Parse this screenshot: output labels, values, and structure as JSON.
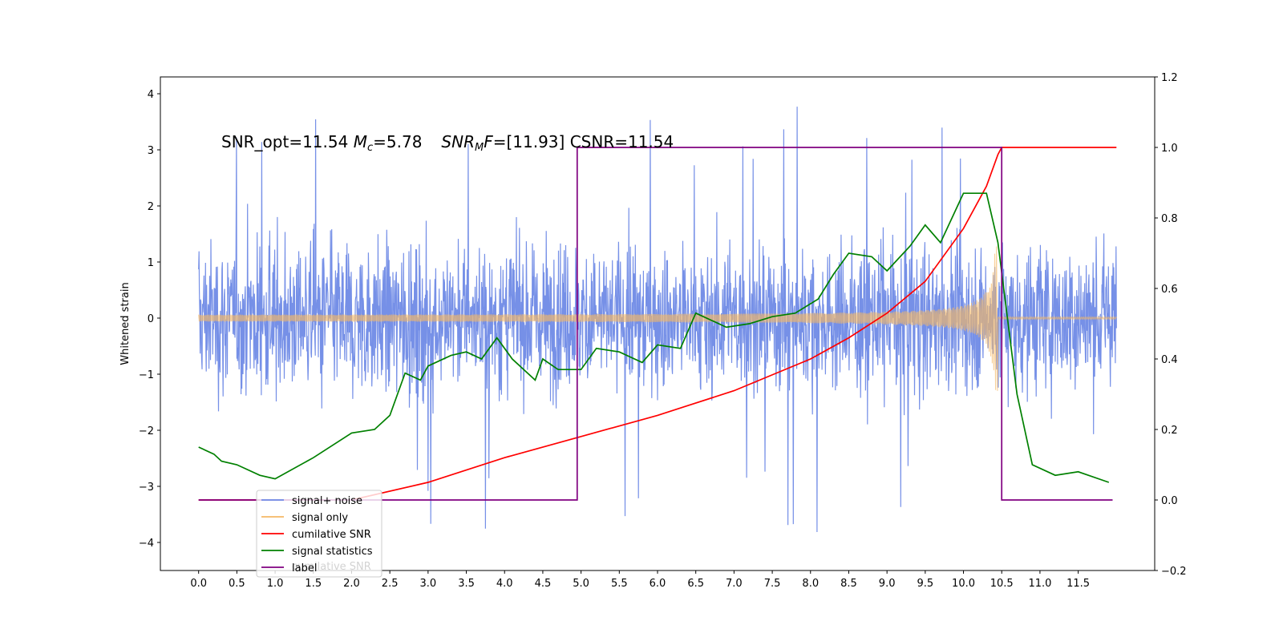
{
  "chart_data": {
    "type": "line",
    "annotation": {
      "prefix": "SNR_opt=11.54 ",
      "mc_symbol": "M",
      "mc_sub": "c",
      "mc_value": "=5.78",
      "snr_symbol": "SNR",
      "snr_sub": "M",
      "snr_f": "F",
      "snr_value": "=[11.93] CSNR=11.54"
    },
    "ylabel_left": "Whitened strain",
    "xlim": [
      -0.5,
      12.5
    ],
    "ylim_left": [
      -4.5,
      4.3
    ],
    "ylim_right": [
      -0.2,
      1.2
    ],
    "x_ticks": [
      "0.0",
      "0.5",
      "1.0",
      "1.5",
      "2.0",
      "2.5",
      "3.0",
      "3.5",
      "4.0",
      "4.5",
      "5.0",
      "5.5",
      "6.0",
      "6.5",
      "7.0",
      "7.5",
      "8.0",
      "8.5",
      "9.0",
      "9.5",
      "10.0",
      "10.5",
      "11.0",
      "11.5"
    ],
    "y_ticks_left": [
      "4",
      "3",
      "2",
      "1",
      "0",
      "−1",
      "−2",
      "−3",
      "−4"
    ],
    "y_ticks_right": [
      "1.2",
      "1.0",
      "0.8",
      "0.6",
      "0.4",
      "0.2",
      "0.0",
      "−0.2"
    ],
    "grid": false,
    "legend_position": "lower-left",
    "legend": [
      "signal+ noise",
      "signal only",
      "cumilative SNR",
      "signal statistics",
      "label"
    ],
    "legend_ghost_text": "cumilative SNR",
    "series": [
      {
        "name": "signal+ noise",
        "axis": "left",
        "color": "#6f8ae6",
        "x_range": [
          0.0,
          12.0
        ],
        "envelope": 2.2,
        "peak_extremes": [
          3.9,
          -4.1
        ]
      },
      {
        "name": "signal only",
        "axis": "left",
        "color": "#f5b865",
        "chirp_start": 0.0,
        "merger_x": 10.45,
        "peak_amplitude": 1.3
      },
      {
        "name": "cumilative SNR",
        "axis": "right",
        "color": "#ff0000",
        "x": [
          0.0,
          1.0,
          2.0,
          3.0,
          4.0,
          5.0,
          6.0,
          7.0,
          8.0,
          8.5,
          9.0,
          9.5,
          10.0,
          10.3,
          10.45,
          10.5,
          12.0
        ],
        "y": [
          0.0,
          0.0,
          0.0,
          0.05,
          0.12,
          0.18,
          0.24,
          0.31,
          0.4,
          0.46,
          0.53,
          0.62,
          0.77,
          0.89,
          0.98,
          1.0,
          1.0
        ]
      },
      {
        "name": "signal statistics",
        "axis": "right",
        "color": "#008000",
        "x": [
          0.0,
          0.2,
          0.3,
          0.5,
          0.8,
          1.0,
          1.5,
          2.0,
          2.3,
          2.5,
          2.7,
          2.9,
          3.0,
          3.3,
          3.5,
          3.7,
          3.9,
          4.1,
          4.4,
          4.5,
          4.7,
          5.0,
          5.2,
          5.5,
          5.8,
          6.0,
          6.3,
          6.5,
          6.7,
          6.9,
          7.2,
          7.5,
          7.8,
          8.1,
          8.3,
          8.5,
          8.8,
          9.0,
          9.3,
          9.5,
          9.7,
          10.0,
          10.3,
          10.45,
          10.7,
          10.9,
          11.2,
          11.5,
          11.9
        ],
        "y": [
          0.15,
          0.13,
          0.11,
          0.1,
          0.07,
          0.06,
          0.12,
          0.19,
          0.2,
          0.24,
          0.36,
          0.34,
          0.38,
          0.41,
          0.42,
          0.4,
          0.46,
          0.4,
          0.34,
          0.4,
          0.37,
          0.37,
          0.43,
          0.42,
          0.39,
          0.44,
          0.43,
          0.53,
          0.51,
          0.49,
          0.5,
          0.52,
          0.53,
          0.57,
          0.64,
          0.7,
          0.69,
          0.65,
          0.72,
          0.78,
          0.73,
          0.87,
          0.87,
          0.73,
          0.3,
          0.1,
          0.07,
          0.08,
          0.05
        ]
      },
      {
        "name": "label",
        "axis": "right",
        "color": "#800080",
        "x": [
          0.0,
          4.95,
          4.95,
          10.5,
          10.5,
          11.95
        ],
        "y": [
          0.0,
          0.0,
          1.0,
          1.0,
          0.0,
          0.0
        ]
      }
    ]
  }
}
